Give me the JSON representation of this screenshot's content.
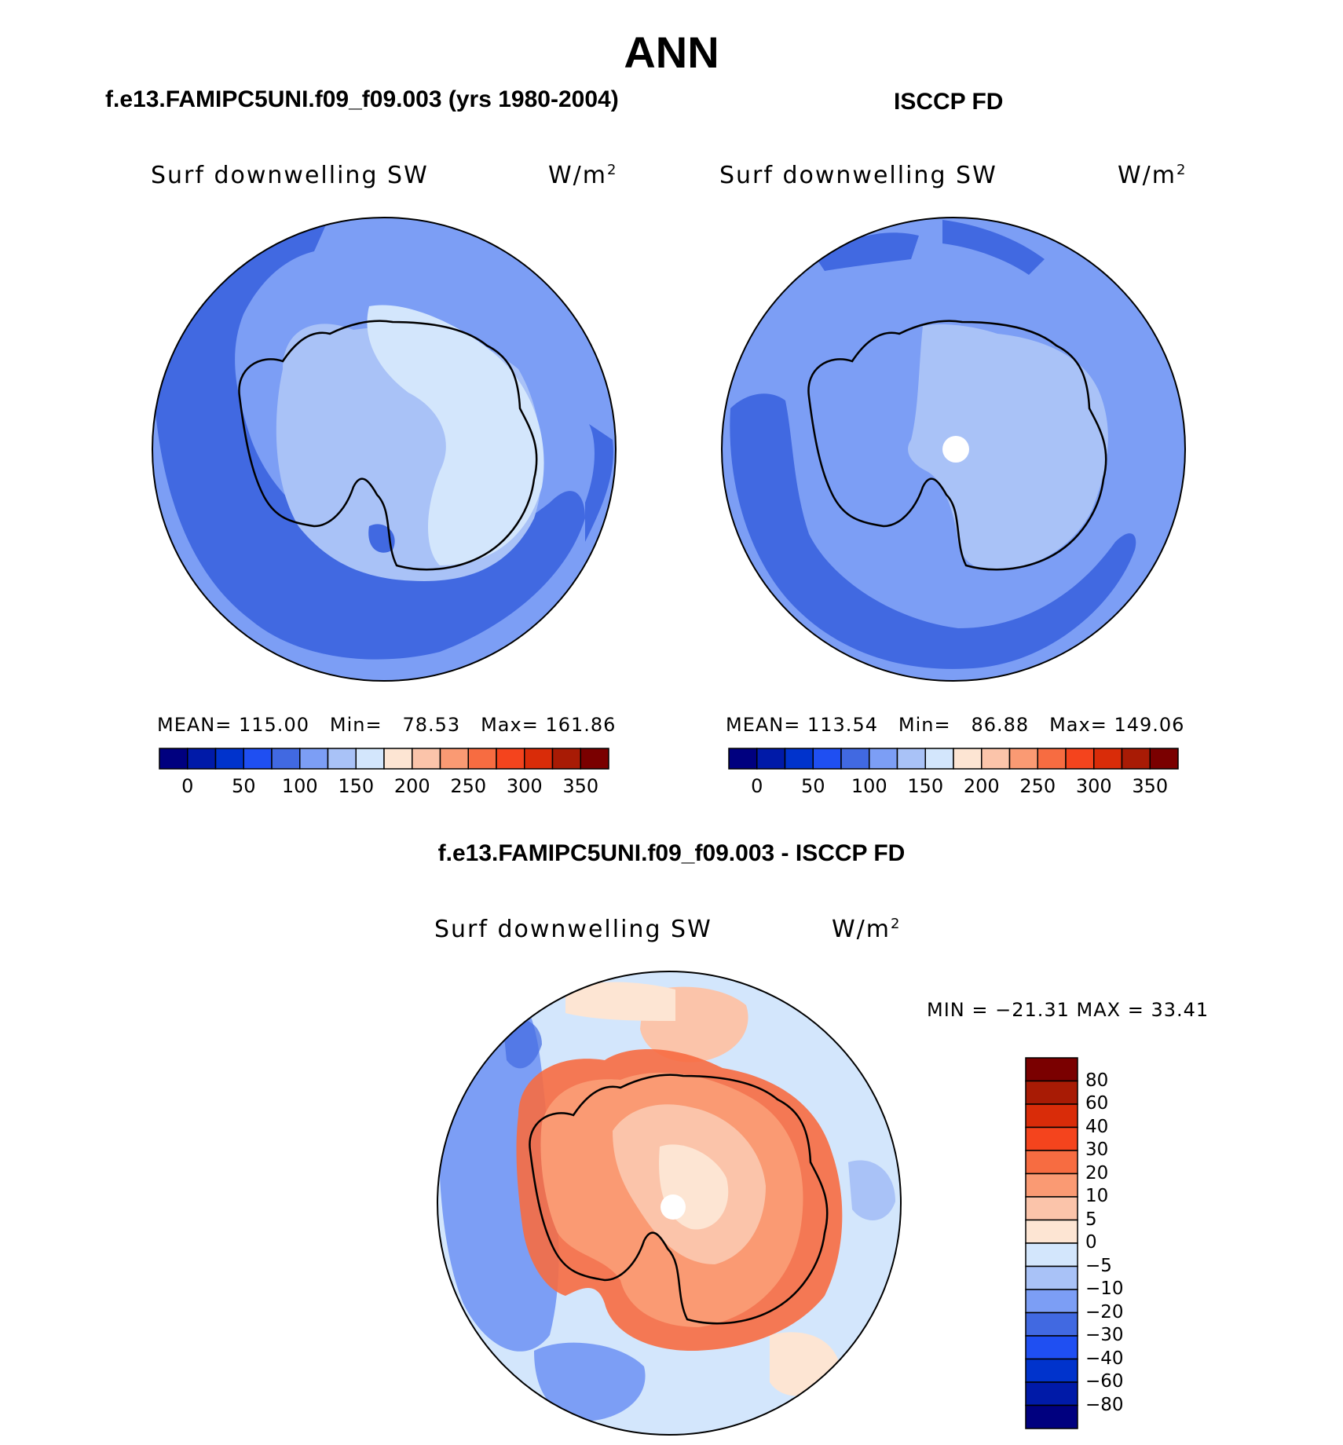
{
  "title": "ANN",
  "panels": [
    {
      "case": "f.e13.FAMIPC5UNI.f09_f09.003 (yrs 1980-2004)",
      "variable": "Surf  downwelling  SW",
      "units": "W/m",
      "units_sup": "2",
      "mean_label": "MEAN=",
      "mean": "115.00",
      "min_label": "Min=",
      "min": "78.53",
      "max_label": "Max=",
      "max": "161.86"
    },
    {
      "case": "ISCCP FD",
      "variable": "Surf  downwelling  SW",
      "units": "W/m",
      "units_sup": "2",
      "mean_label": "MEAN=",
      "mean": "113.54",
      "min_label": "Min=",
      "min": "86.88",
      "max_label": "Max=",
      "max": "149.06"
    }
  ],
  "colorbar_ticks": [
    "0",
    "50",
    "100",
    "150",
    "200",
    "250",
    "300",
    "350"
  ],
  "colorbar_colors": [
    "#00007f",
    "#001aa8",
    "#0033cc",
    "#1f4ff2",
    "#4169e1",
    "#7c9ef5",
    "#a9c2f7",
    "#d3e6fc",
    "#fde5d3",
    "#fbc4aa",
    "#fa9a73",
    "#f76c41",
    "#f4441d",
    "#d92c09",
    "#a81b05",
    "#7a0000"
  ],
  "difference": {
    "title": "f.e13.FAMIPC5UNI.f09_f09.003 - ISCCP FD",
    "variable": "Surf  downwelling  SW",
    "units": "W/m",
    "units_sup": "2",
    "minmax": "MIN  =  −21.31  MAX  =     33.41",
    "colorbar_ticks": [
      "80",
      "60",
      "40",
      "30",
      "20",
      "10",
      "5",
      "0",
      "−5",
      "−10",
      "−20",
      "−30",
      "−40",
      "−60",
      "−80"
    ],
    "colorbar_colors": [
      "#7a0000",
      "#a81b05",
      "#d92c09",
      "#f4441d",
      "#f76c41",
      "#fa9a73",
      "#fbc4aa",
      "#fde5d3",
      "#d3e6fc",
      "#a9c2f7",
      "#7c9ef5",
      "#4169e1",
      "#1f4ff2",
      "#0033cc",
      "#001aa8",
      "#00007f"
    ]
  }
}
